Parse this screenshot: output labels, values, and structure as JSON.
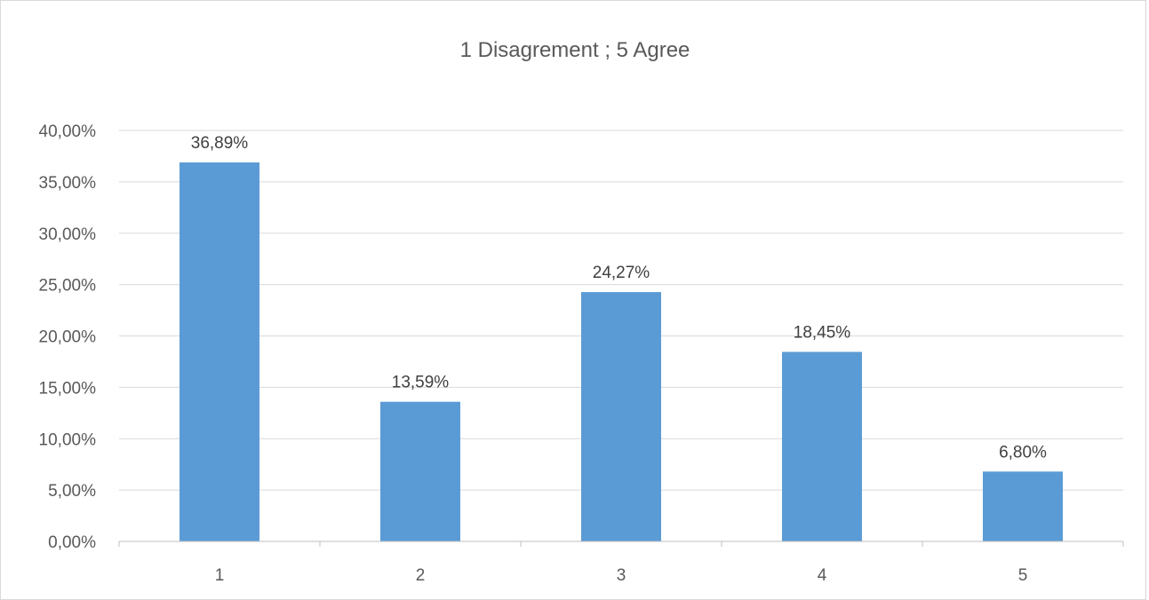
{
  "chart_data": {
    "type": "bar",
    "title": "1 Disagrement ; 5 Agree",
    "categories": [
      "1",
      "2",
      "3",
      "4",
      "5"
    ],
    "values": [
      36.89,
      13.59,
      24.27,
      18.45,
      6.8
    ],
    "data_labels": [
      "36,89%",
      "13,59%",
      "24,27%",
      "18,45%",
      "6,80%"
    ],
    "y_ticks": [
      {
        "value": 0,
        "label": "0,00%"
      },
      {
        "value": 5,
        "label": "5,00%"
      },
      {
        "value": 10,
        "label": "10,00%"
      },
      {
        "value": 15,
        "label": "15,00%"
      },
      {
        "value": 20,
        "label": "20,00%"
      },
      {
        "value": 25,
        "label": "25,00%"
      },
      {
        "value": 30,
        "label": "30,00%"
      },
      {
        "value": 35,
        "label": "35,00%"
      },
      {
        "value": 40,
        "label": "40,00%"
      }
    ],
    "ylim": [
      0,
      40
    ],
    "grid": true,
    "legend": "none",
    "bar_color": "#5b9bd5"
  }
}
